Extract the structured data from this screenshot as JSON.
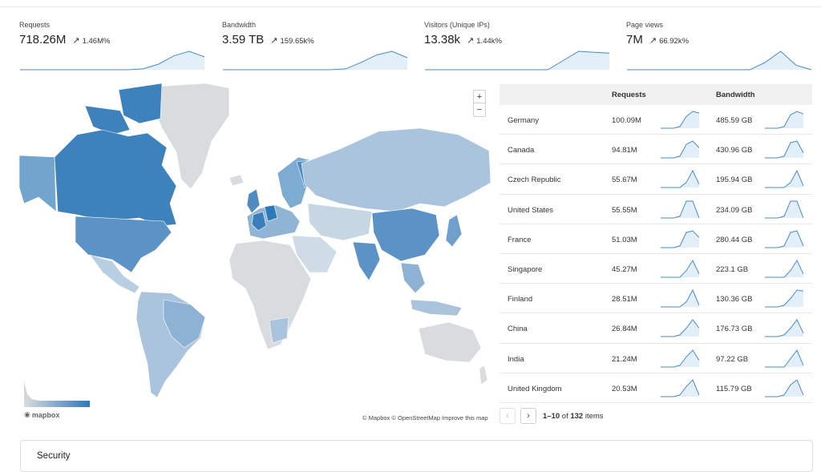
{
  "stats": [
    {
      "label": "Requests",
      "value": "718.26M",
      "change": "1.46M%",
      "spark": [
        0,
        0,
        0,
        0,
        0,
        0,
        0,
        0,
        0.05,
        0.3,
        0.75,
        1,
        0.7
      ]
    },
    {
      "label": "Bandwidth",
      "value": "3.59 TB",
      "change": "159.65k%",
      "spark": [
        0,
        0,
        0,
        0,
        0,
        0,
        0,
        0,
        0.05,
        0.4,
        0.8,
        1,
        0.65
      ]
    },
    {
      "label": "Visitors (Unique IPs)",
      "value": "13.38k",
      "change": "1.44k%",
      "spark": [
        0,
        0,
        0,
        0,
        0,
        0,
        0,
        0,
        0,
        0.5,
        1,
        0.95,
        0.9
      ]
    },
    {
      "label": "Page views",
      "value": "7M",
      "change": "66.92k%",
      "spark": [
        0,
        0,
        0,
        0,
        0,
        0,
        0,
        0,
        0,
        0.4,
        1,
        0.25,
        0
      ]
    }
  ],
  "map": {
    "zoom_in": "+",
    "zoom_out": "−",
    "logo_text": "mapbox",
    "attribution": "© Mapbox © OpenStreetMap Improve this map"
  },
  "table": {
    "headers": {
      "requests": "Requests",
      "bandwidth": "Bandwidth"
    },
    "rows": [
      {
        "country": "Germany",
        "requests": "100.09M",
        "bandwidth": "485.59 GB",
        "req_spark": [
          0,
          0,
          0,
          0.1,
          0.7,
          1,
          0.9
        ],
        "bw_spark": [
          0,
          0,
          0,
          0.1,
          0.8,
          1,
          0.85
        ]
      },
      {
        "country": "Canada",
        "requests": "94.81M",
        "bandwidth": "430.96 GB",
        "req_spark": [
          0,
          0,
          0,
          0.1,
          0.8,
          1,
          0.6
        ],
        "bw_spark": [
          0,
          0,
          0,
          0.1,
          0.9,
          1,
          0.3
        ]
      },
      {
        "country": "Czech Republic",
        "requests": "55.67M",
        "bandwidth": "195.94 GB",
        "req_spark": [
          0,
          0,
          0,
          0,
          0.3,
          1,
          0.2
        ],
        "bw_spark": [
          0,
          0,
          0,
          0,
          0.3,
          1,
          0.1
        ]
      },
      {
        "country": "United States",
        "requests": "55.55M",
        "bandwidth": "234.09 GB",
        "req_spark": [
          0,
          0,
          0,
          0.1,
          1,
          1,
          0
        ],
        "bw_spark": [
          0,
          0,
          0,
          0.1,
          1,
          1,
          0
        ]
      },
      {
        "country": "France",
        "requests": "51.03M",
        "bandwidth": "280.44 GB",
        "req_spark": [
          0,
          0,
          0,
          0.1,
          0.9,
          1,
          0.6
        ],
        "bw_spark": [
          0,
          0,
          0,
          0.1,
          0.9,
          1,
          0.1
        ]
      },
      {
        "country": "Singapore",
        "requests": "45.27M",
        "bandwidth": "223.1 GB",
        "req_spark": [
          0,
          0,
          0,
          0,
          0.4,
          1,
          0.2
        ],
        "bw_spark": [
          0,
          0,
          0,
          0,
          0.4,
          1,
          0.2
        ]
      },
      {
        "country": "Finland",
        "requests": "28.51M",
        "bandwidth": "130.36 GB",
        "req_spark": [
          0,
          0,
          0,
          0,
          0.3,
          1,
          0.1
        ],
        "bw_spark": [
          0,
          0,
          0,
          0.1,
          0.5,
          1,
          0.95
        ]
      },
      {
        "country": "China",
        "requests": "26.84M",
        "bandwidth": "176.73 GB",
        "req_spark": [
          0,
          0,
          0,
          0.1,
          0.5,
          1,
          0.5
        ],
        "bw_spark": [
          0,
          0,
          0,
          0.1,
          0.5,
          1,
          0.2
        ]
      },
      {
        "country": "India",
        "requests": "21.24M",
        "bandwidth": "97.22 GB",
        "req_spark": [
          0,
          0,
          0,
          0.1,
          0.6,
          1,
          0.4
        ],
        "bw_spark": [
          0,
          0,
          0,
          0,
          0.5,
          1,
          0.1
        ]
      },
      {
        "country": "United Kingdom",
        "requests": "20.53M",
        "bandwidth": "115.79 GB",
        "req_spark": [
          0,
          0,
          0,
          0.1,
          0.6,
          1,
          0.1
        ],
        "bw_spark": [
          0,
          0,
          0,
          0.1,
          0.7,
          1,
          0.1
        ]
      }
    ]
  },
  "pagination": {
    "prev": "‹",
    "next": "›",
    "range": "1–10",
    "of_label": "of",
    "total": "132",
    "items_label": "items"
  },
  "security": {
    "title": "Security"
  },
  "colors": {
    "accent": "#4a8bc2",
    "spark_fill": "#e2eef8",
    "land_light": "#d9dcdf",
    "land_dark": "#2f78b9"
  }
}
